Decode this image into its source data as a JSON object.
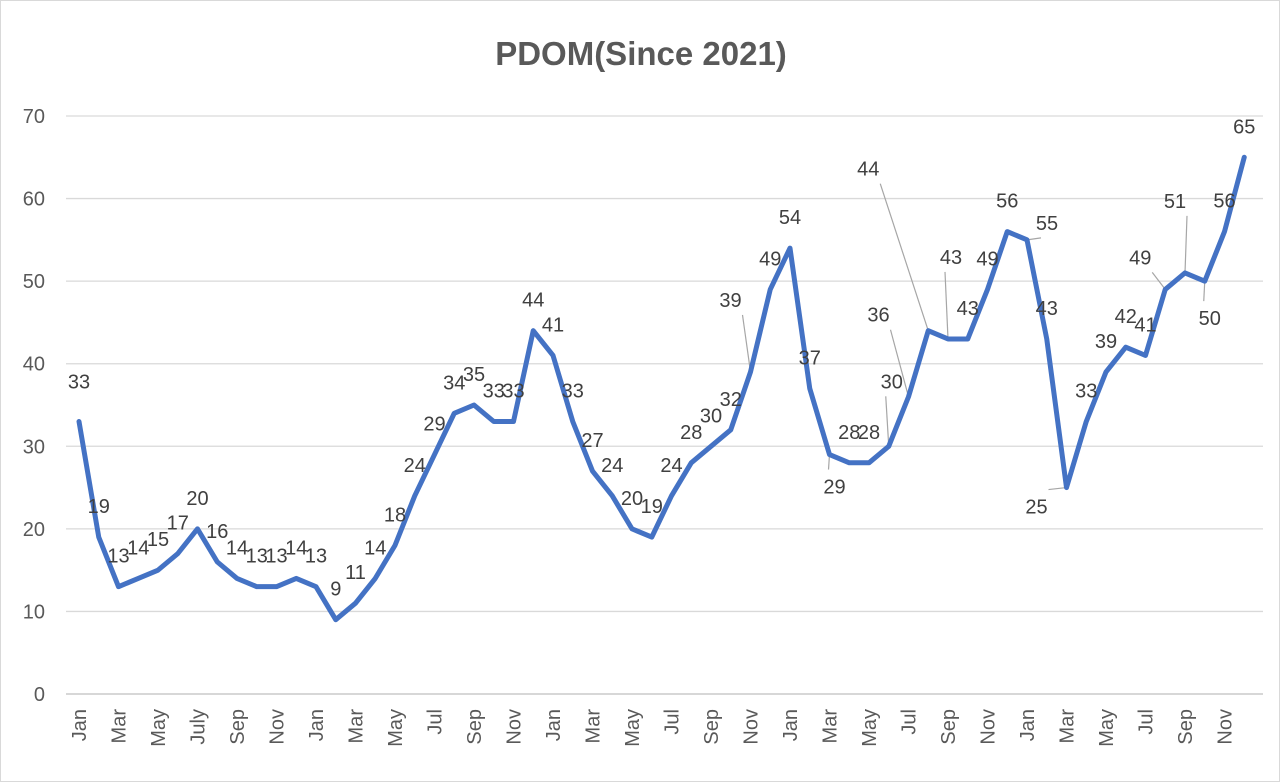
{
  "chart_data": {
    "type": "line",
    "title": "PDOM(Since 2021)",
    "xlabel": "",
    "ylabel": "",
    "ylim": [
      0,
      70
    ],
    "yticks": [
      0,
      10,
      20,
      30,
      40,
      50,
      60,
      70
    ],
    "grid": true,
    "legend": "none",
    "line_color": "#4472C4",
    "x_tick_labels": [
      "Jan",
      "Mar",
      "May",
      "July",
      "Sep",
      "Nov",
      "Jan",
      "Mar",
      "May",
      "Jul",
      "Sep",
      "Nov",
      "Jan",
      "Mar",
      "May",
      "Jul",
      "Sep",
      "Nov",
      "Jan",
      "Mar",
      "May",
      "Jul",
      "Sep",
      "Nov",
      "Jan",
      "Mar",
      "May",
      "Jul",
      "Sep",
      "Nov"
    ],
    "series": [
      {
        "name": "PDOM",
        "values": [
          33,
          19,
          13,
          14,
          15,
          17,
          20,
          16,
          14,
          13,
          13,
          14,
          13,
          9,
          11,
          14,
          18,
          24,
          29,
          34,
          35,
          33,
          33,
          44,
          41,
          33,
          27,
          24,
          20,
          19,
          24,
          28,
          30,
          32,
          39,
          49,
          54,
          37,
          29,
          28,
          28,
          30,
          36,
          44,
          43,
          43,
          49,
          56,
          55,
          43,
          25,
          33,
          39,
          42,
          41,
          49,
          51,
          50,
          56,
          65
        ]
      }
    ]
  }
}
